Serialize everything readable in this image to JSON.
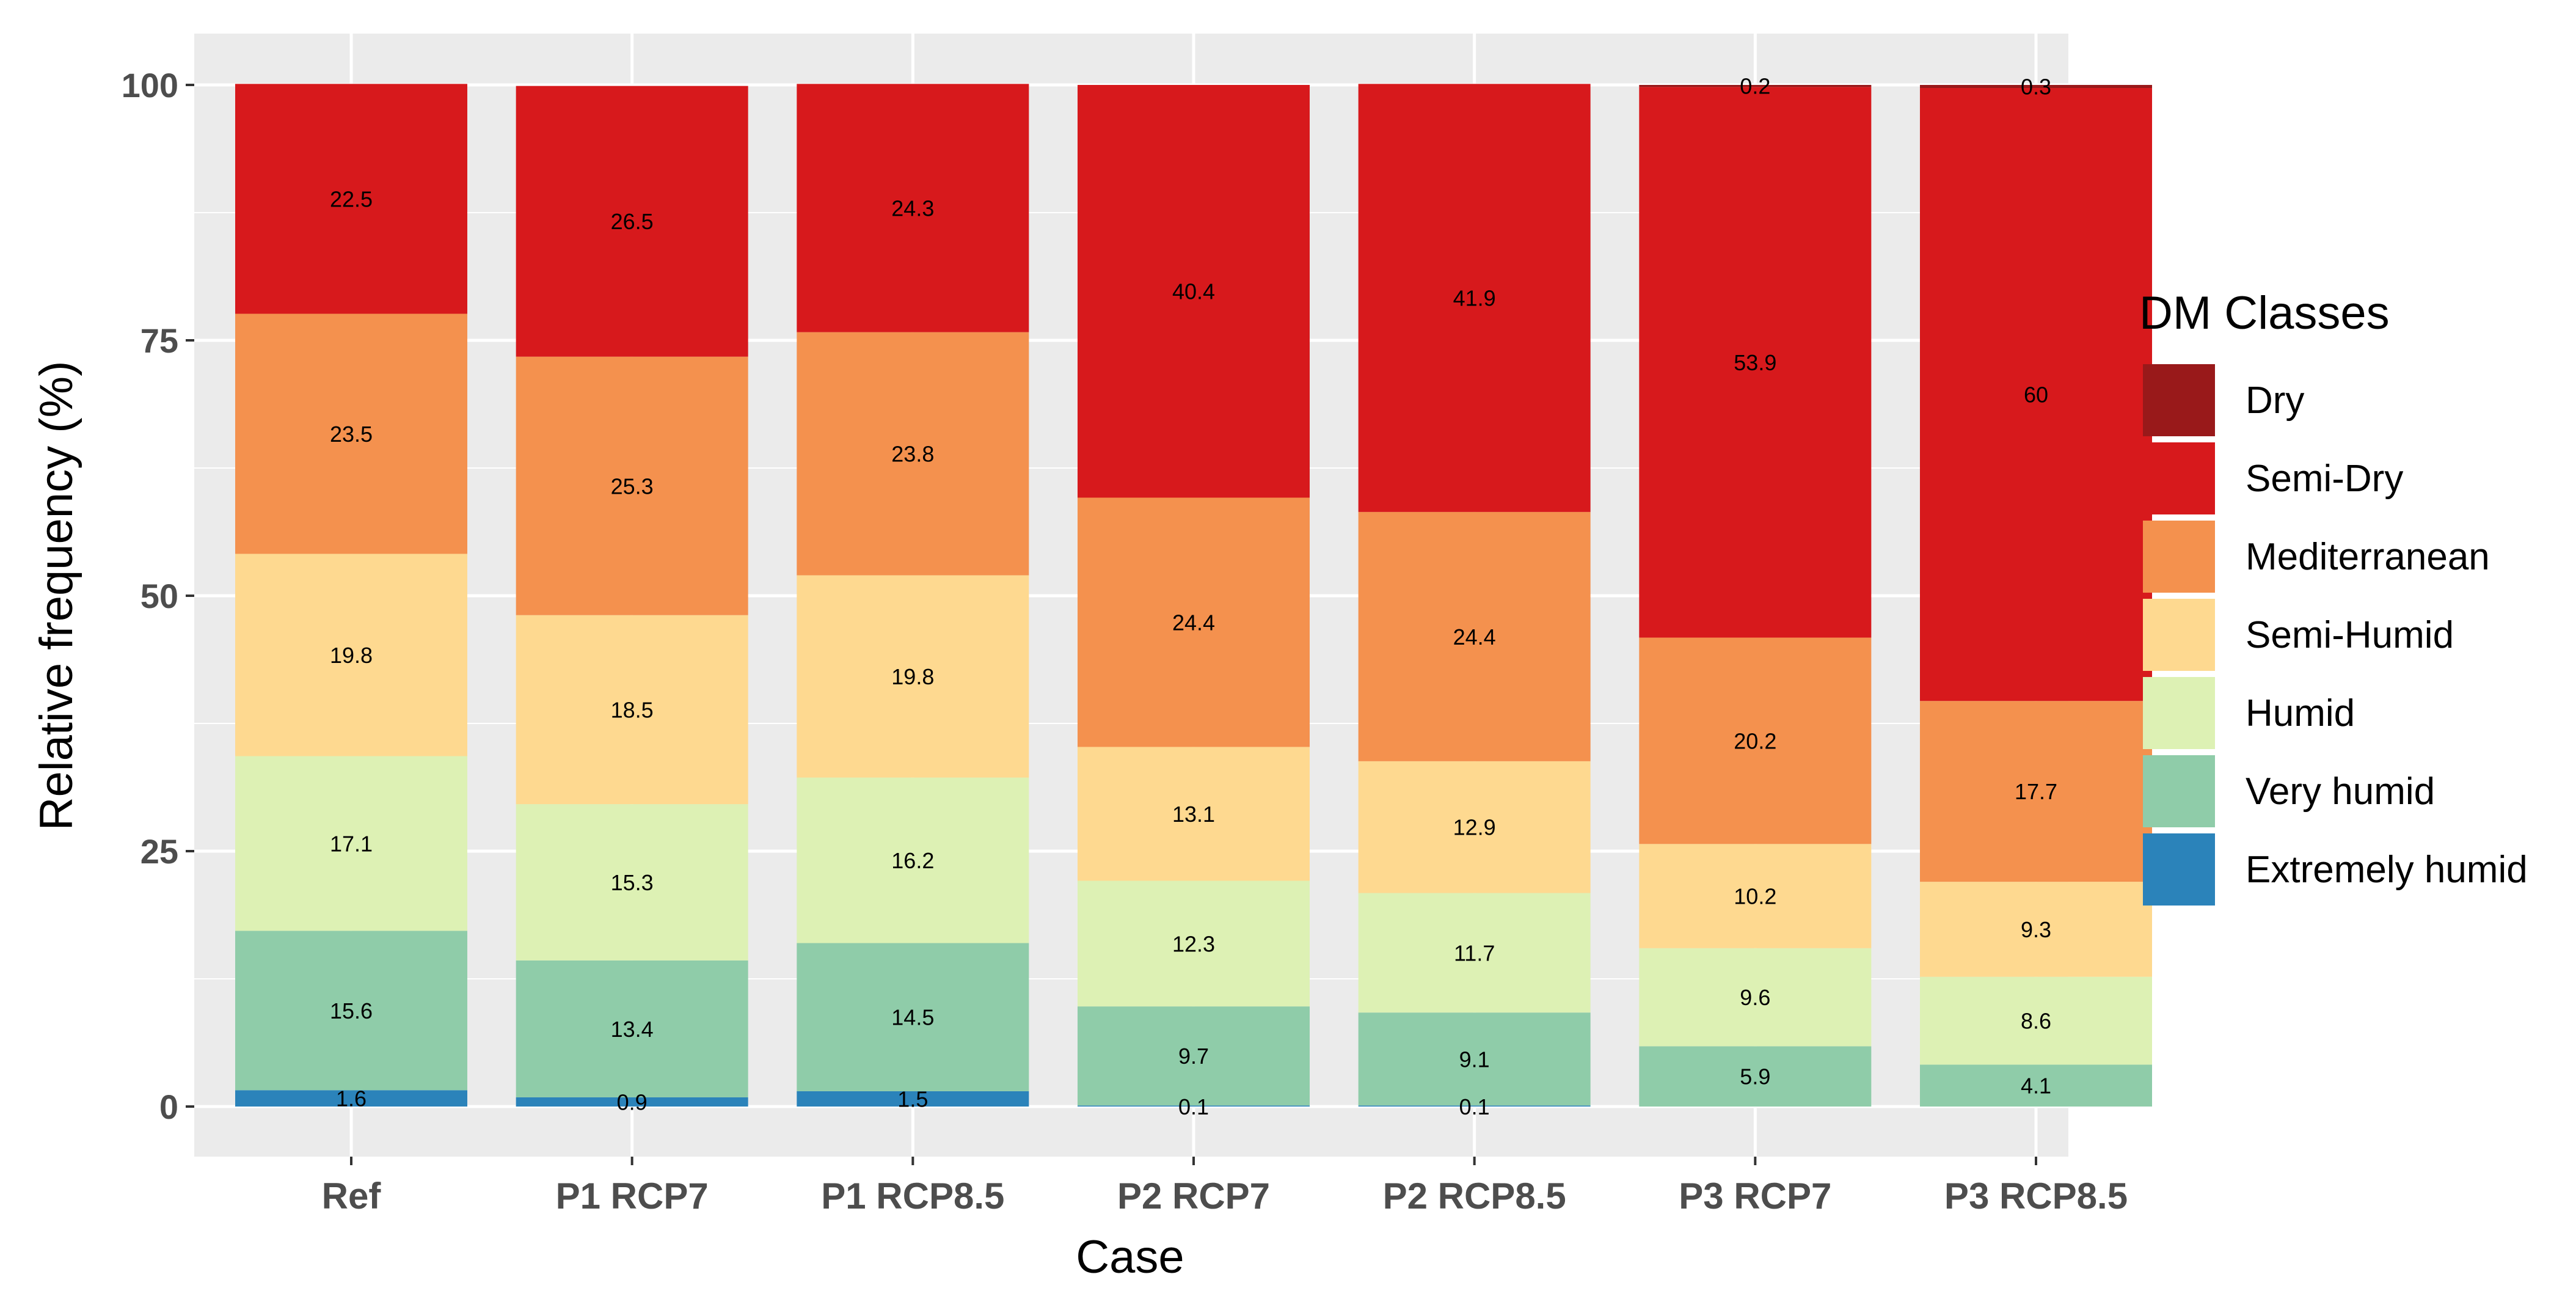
{
  "chart_data": {
    "type": "bar",
    "stacked": true,
    "title": "",
    "xlabel": "Case",
    "ylabel": "Relative frequency (%)",
    "ylim": [
      0,
      100
    ],
    "yticks": [
      0,
      25,
      50,
      75,
      100
    ],
    "grid": true,
    "legend_position": "right",
    "legend_title": "DM Classes",
    "categories": [
      "Ref",
      "P1 RCP7",
      "P1 RCP8.5",
      "P2 RCP7",
      "P2 RCP8.5",
      "P3 RCP7",
      "P3 RCP8.5"
    ],
    "series": [
      {
        "name": "Extremely humid",
        "color": "#2b83ba",
        "values": [
          1.6,
          0.9,
          1.5,
          0.1,
          0.1,
          0,
          0
        ],
        "labels": [
          "1.6",
          "0.9",
          "1.5",
          "",
          "",
          "",
          ""
        ]
      },
      {
        "name": "Very humid",
        "color": "#8fcca9",
        "values": [
          15.6,
          13.4,
          14.5,
          9.7,
          9.1,
          5.9,
          4.1
        ],
        "labels": [
          "15.6",
          "13.4",
          "14.5",
          "9.7",
          "9.1",
          "5.9",
          "4.1"
        ]
      },
      {
        "name": "Humid",
        "color": "#ddf1b4",
        "values": [
          17.1,
          15.3,
          16.2,
          12.3,
          11.7,
          9.6,
          8.6
        ],
        "labels": [
          "17.1",
          "15.3",
          "16.2",
          "12.3",
          "11.7",
          "9.6",
          "8.6"
        ]
      },
      {
        "name": "Semi-Humid",
        "color": "#fed990",
        "values": [
          19.8,
          18.5,
          19.8,
          13.1,
          12.9,
          10.2,
          9.3
        ],
        "labels": [
          "19.8",
          "18.5",
          "19.8",
          "13.1",
          "12.9",
          "10.2",
          "9.3"
        ]
      },
      {
        "name": "Mediterranean",
        "color": "#f4914e",
        "values": [
          23.5,
          25.3,
          23.8,
          24.4,
          24.4,
          20.2,
          17.7
        ],
        "labels": [
          "23.5",
          "25.3",
          "23.8",
          "24.4",
          "24.4",
          "20.2",
          "17.7"
        ]
      },
      {
        "name": "Semi-Dry",
        "color": "#d7191c",
        "values": [
          22.5,
          26.5,
          24.3,
          40.4,
          41.9,
          53.9,
          60
        ],
        "labels": [
          "22.5",
          "26.5",
          "24.3",
          "40.4",
          "41.9",
          "53.9",
          "60"
        ]
      },
      {
        "name": "Dry",
        "color": "#99191a",
        "values": [
          0,
          0,
          0,
          0,
          0,
          0.2,
          0.3
        ],
        "labels": [
          "",
          "",
          "",
          "",
          "",
          "0.2",
          "0.3"
        ]
      }
    ],
    "bottom_labels": [
      "",
      "",
      "",
      "0.1",
      "0.1",
      "",
      ""
    ],
    "legend_order": [
      "Dry",
      "Semi-Dry",
      "Mediterranean",
      "Semi-Humid",
      "Humid",
      "Very humid",
      "Extremely humid"
    ]
  }
}
